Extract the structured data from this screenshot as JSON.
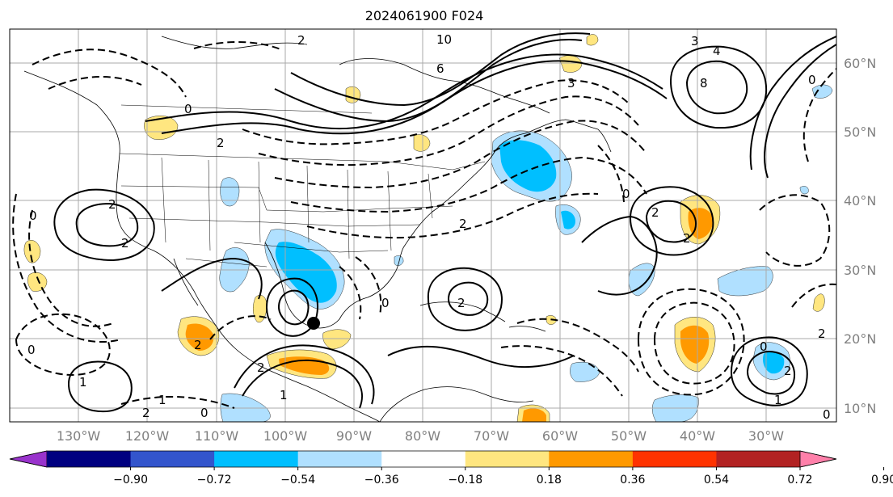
{
  "title": "2024061900 F024",
  "lat_labels": [
    "60°N",
    "50°N",
    "40°N",
    "30°N",
    "20°N",
    "10°N"
  ],
  "lon_labels": [
    "130°W",
    "120°W",
    "110°W",
    "100°W",
    "90°W",
    "80°W",
    "70°W",
    "60°W",
    "50°W",
    "40°W",
    "30°W"
  ],
  "colorbar": {
    "tick_labels": [
      "−0.90",
      "−0.72",
      "−0.54",
      "−0.36",
      "−0.18",
      "0.18",
      "0.36",
      "0.54",
      "0.72",
      "0.90"
    ],
    "colors": [
      "#9933cc",
      "#000080",
      "#3355cc",
      "#00bfff",
      "#b0e0ff",
      "#ffffff",
      "#ffe680",
      "#ff9900",
      "#ff3300",
      "#b22222",
      "#ff80aa"
    ],
    "under_color": "#9933cc",
    "over_color": "#ff80aa"
  },
  "fill_colors": {
    "light_blue": "#b0e0ff",
    "blue": "#00bfff",
    "deep_blue": "#3355cc",
    "light_yellow": "#ffe680",
    "orange": "#ff9900"
  },
  "contour_labels": [
    "2",
    "0",
    "6",
    "10",
    "3",
    "4",
    "8",
    "2",
    "0",
    "0",
    "2",
    "2",
    "2",
    "2",
    "2",
    "0",
    "2",
    "1",
    "2",
    "3",
    "2",
    "0",
    "1",
    "1",
    "2",
    "0",
    "2",
    "0",
    "1",
    "2",
    "0",
    "0"
  ]
}
